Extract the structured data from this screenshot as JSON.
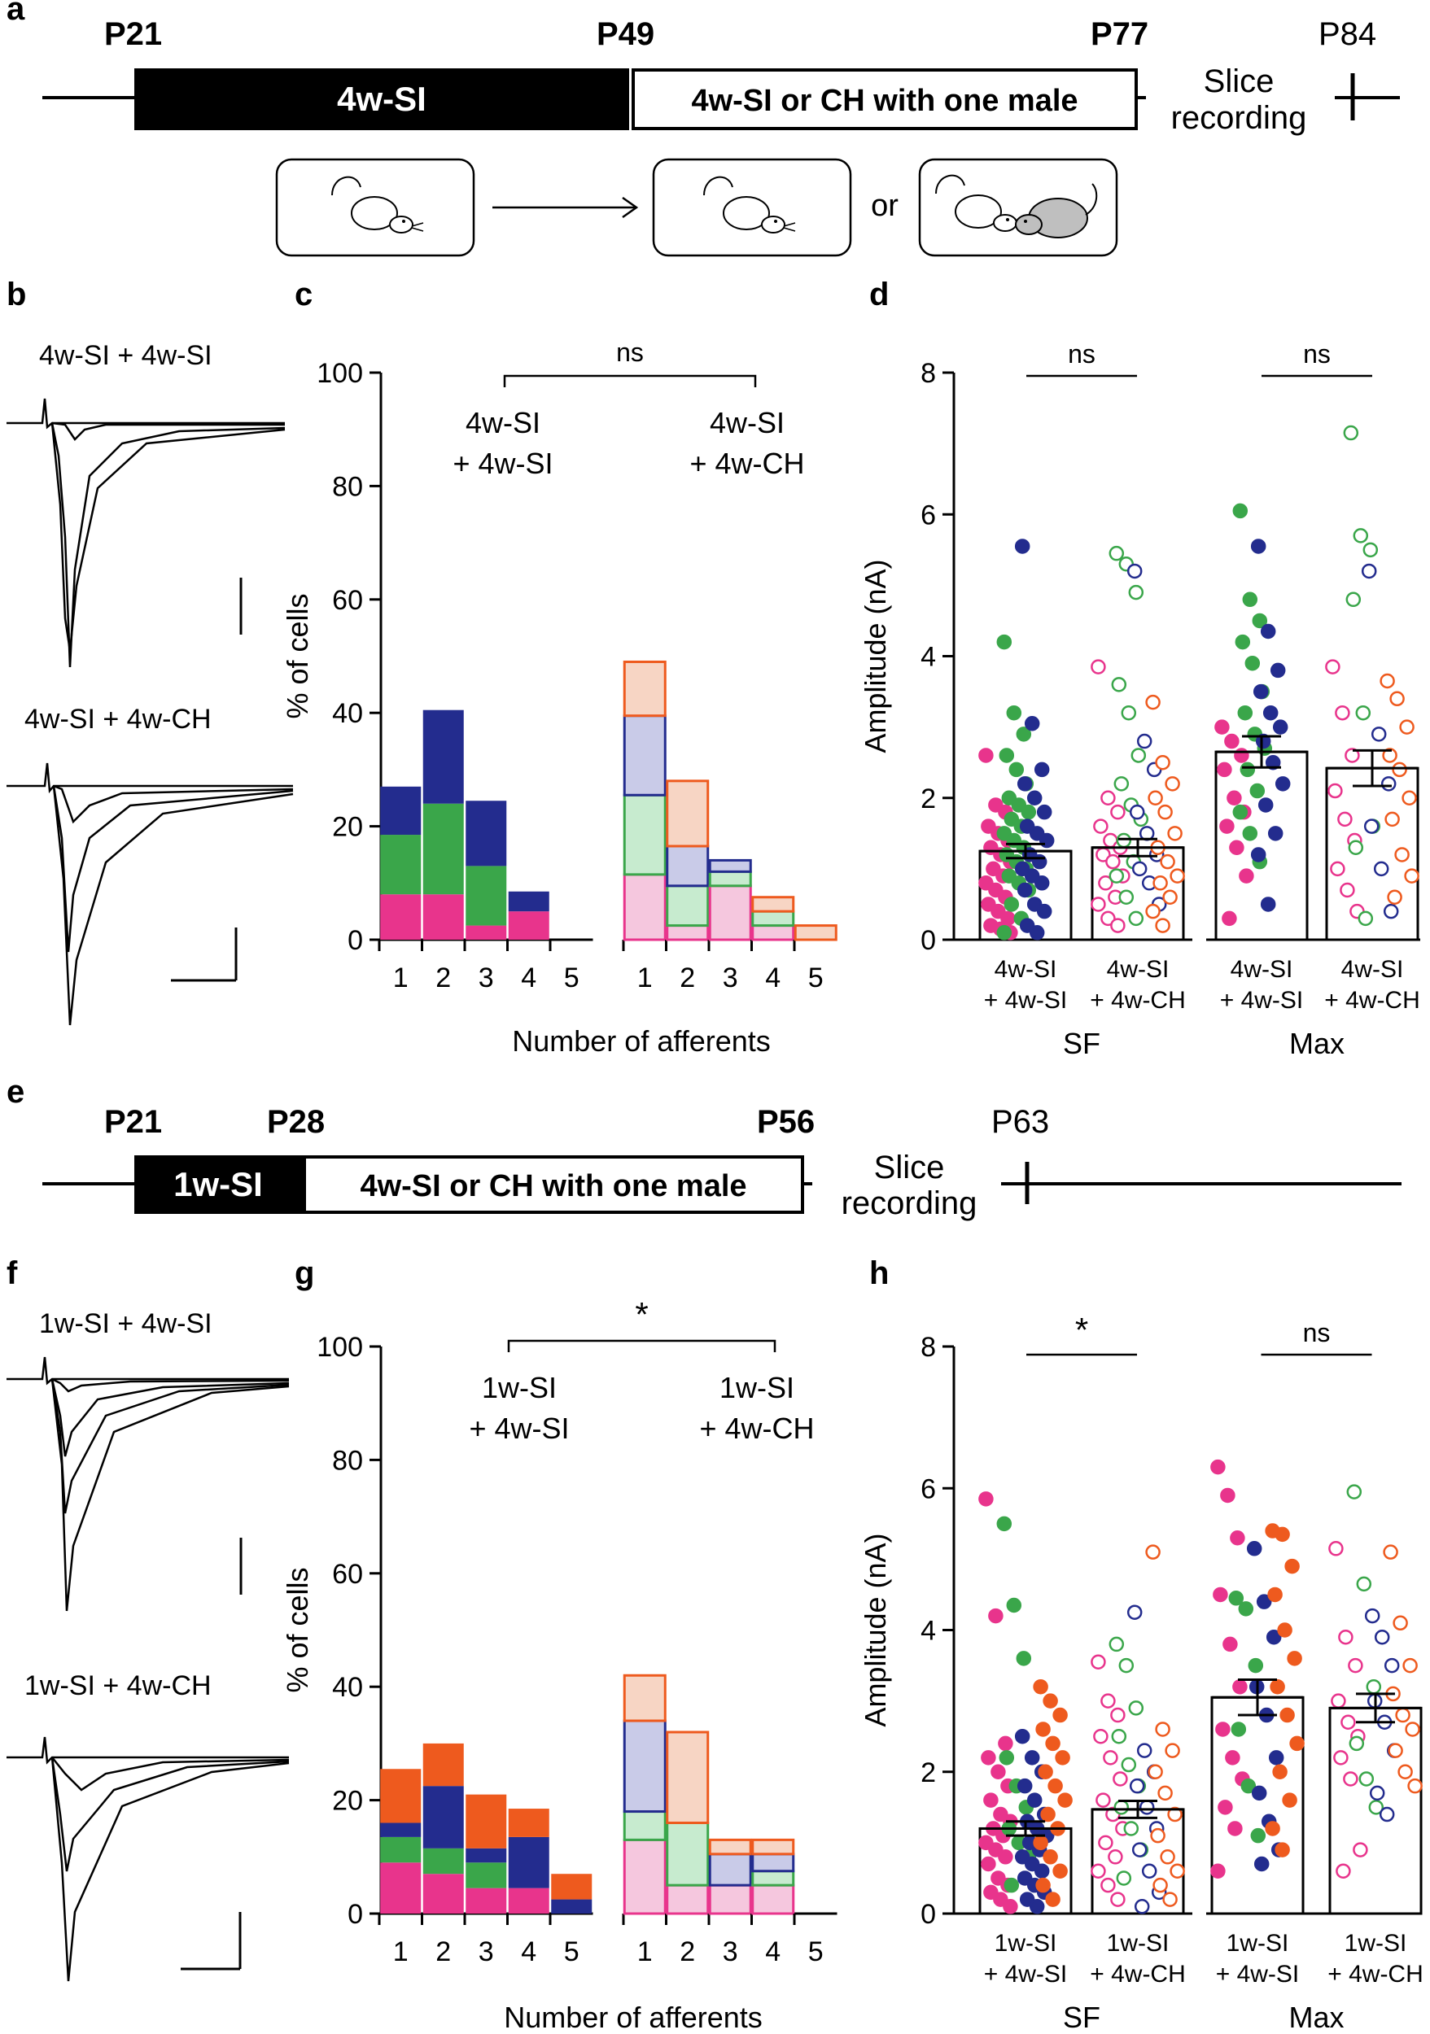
{
  "panels": {
    "a": {
      "letter": "a",
      "timepoints": [
        "P21",
        "P49",
        "P77",
        "P84"
      ],
      "box1": "4w-SI",
      "box2": "4w-SI or CH with one male",
      "slice1": "Slice",
      "slice2": "recording",
      "or": "or"
    },
    "b": {
      "letter": "b",
      "trace_top": "4w-SI + 4w-SI",
      "trace_bottom": "4w-SI + 4w-CH"
    },
    "c": {
      "letter": "c"
    },
    "d": {
      "letter": "d"
    },
    "e": {
      "letter": "e",
      "timepoints": [
        "P21",
        "P28",
        "P56",
        "P63"
      ],
      "box1": "1w-SI",
      "box2": "4w-SI or CH with one male",
      "slice1": "Slice",
      "slice2": "recording"
    },
    "f": {
      "letter": "f",
      "trace_top": "1w-SI + 4w-SI",
      "trace_bottom": "1w-SI + 4w-CH"
    },
    "g": {
      "letter": "g"
    },
    "h": {
      "letter": "h"
    }
  },
  "colors": {
    "magenta": "#e8348c",
    "green": "#3aa64a",
    "navy": "#232c8e",
    "orange": "#ee5a1e",
    "magenta_light": "#f5c7de",
    "green_light": "#c7ebcf",
    "navy_light": "#c9cbe8",
    "orange_light": "#f7d5c4"
  },
  "chart_data": [
    {
      "id": "c",
      "type": "bar",
      "stacked": true,
      "ylabel": "% of cells",
      "xlabel": "Number of afferents",
      "ylim": [
        0,
        100
      ],
      "yticks": [
        "0",
        "20",
        "40",
        "60",
        "80",
        "100"
      ],
      "significance": "ns",
      "groups": [
        {
          "label1": "4w-SI",
          "label2": "+ 4w-SI",
          "categories": [
            "1",
            "2",
            "3",
            "4",
            "5"
          ],
          "filled": true,
          "stacks": [
            [
              {
                "c": "magenta",
                "v": 8
              },
              {
                "c": "green",
                "v": 10.5
              },
              {
                "c": "navy",
                "v": 8.5
              }
            ],
            [
              {
                "c": "magenta",
                "v": 8
              },
              {
                "c": "green",
                "v": 16
              },
              {
                "c": "navy",
                "v": 16.5
              }
            ],
            [
              {
                "c": "magenta",
                "v": 2.5
              },
              {
                "c": "green",
                "v": 10.5
              },
              {
                "c": "navy",
                "v": 11.5
              }
            ],
            [
              {
                "c": "magenta",
                "v": 5
              },
              {
                "c": "navy",
                "v": 3.5
              }
            ],
            []
          ]
        },
        {
          "label1": "4w-SI",
          "label2": "+ 4w-CH",
          "categories": [
            "1",
            "2",
            "3",
            "4",
            "5"
          ],
          "filled": false,
          "stacks": [
            [
              {
                "c": "magenta",
                "v": 11.5
              },
              {
                "c": "green",
                "v": 14
              },
              {
                "c": "navy",
                "v": 14
              },
              {
                "c": "orange",
                "v": 9.5
              }
            ],
            [
              {
                "c": "magenta",
                "v": 2.5
              },
              {
                "c": "green",
                "v": 7
              },
              {
                "c": "navy",
                "v": 7
              },
              {
                "c": "orange",
                "v": 11.5
              }
            ],
            [
              {
                "c": "magenta",
                "v": 9.5
              },
              {
                "c": "green",
                "v": 2.5
              },
              {
                "c": "navy",
                "v": 2
              }
            ],
            [
              {
                "c": "magenta",
                "v": 2.5
              },
              {
                "c": "green",
                "v": 2.5
              },
              {
                "c": "orange",
                "v": 2.5
              }
            ],
            [
              {
                "c": "orange",
                "v": 2.5
              }
            ]
          ]
        }
      ]
    },
    {
      "id": "d",
      "type": "scatter",
      "ylabel": "Amplitude (nA)",
      "ylim": [
        0,
        8
      ],
      "yticks": [
        "0",
        "2",
        "4",
        "6",
        "8"
      ],
      "categories": [
        {
          "l1": "4w-SI",
          "l2": "+ 4w-SI",
          "mean": 1.25,
          "sem": 0.1,
          "filled": true
        },
        {
          "l1": "4w-SI",
          "l2": "+ 4w-CH",
          "mean": 1.3,
          "sem": 0.12,
          "filled": false
        },
        {
          "l1": "4w-SI",
          "l2": "+ 4w-SI",
          "mean": 2.65,
          "sem": 0.22,
          "filled": true
        },
        {
          "l1": "4w-SI",
          "l2": "+ 4w-CH",
          "mean": 2.42,
          "sem": 0.25,
          "filled": false
        }
      ],
      "group_labels": [
        "SF",
        "Max"
      ],
      "significance": [
        "ns",
        "ns"
      ],
      "points": [
        {
          "g": 0,
          "c": "magenta",
          "v": [
            2.6,
            1.9,
            1.8,
            1.6,
            1.5,
            1.4,
            1.3,
            1.2,
            1.1,
            1.0,
            0.9,
            0.8,
            0.7,
            0.6,
            0.5,
            0.4,
            0.3,
            0.2,
            0.15,
            0.1
          ]
        },
        {
          "g": 0,
          "c": "green",
          "v": [
            4.2,
            3.2,
            2.9,
            2.6,
            2.4,
            2.2,
            2.0,
            1.9,
            1.8,
            1.7,
            1.6,
            1.5,
            1.4,
            1.3,
            1.2,
            1.1,
            1.0,
            0.9,
            0.8,
            0.7,
            0.5,
            0.3,
            0.1
          ]
        },
        {
          "g": 0,
          "c": "navy",
          "v": [
            5.55,
            3.05,
            2.4,
            2.2,
            2.0,
            1.8,
            1.6,
            1.5,
            1.4,
            1.2,
            1.1,
            1.0,
            0.9,
            0.8,
            0.7,
            0.5,
            0.4,
            0.2,
            0.1
          ]
        },
        {
          "g": 1,
          "c": "magenta",
          "v": [
            3.85,
            2.0,
            1.8,
            1.6,
            1.4,
            1.3,
            1.2,
            1.1,
            0.9,
            0.8,
            0.6,
            0.5,
            0.3,
            0.2
          ]
        },
        {
          "g": 1,
          "c": "green",
          "v": [
            5.45,
            5.3,
            4.9,
            3.6,
            3.2,
            2.6,
            2.2,
            1.9,
            1.7,
            1.4,
            1.1,
            0.9,
            0.6,
            0.3
          ]
        },
        {
          "g": 1,
          "c": "navy",
          "v": [
            5.2,
            2.8,
            2.4,
            1.8,
            1.5,
            1.2,
            1.0,
            0.8,
            0.5
          ]
        },
        {
          "g": 1,
          "c": "orange",
          "v": [
            3.35,
            2.5,
            2.2,
            2.0,
            1.8,
            1.5,
            1.3,
            1.1,
            0.9,
            0.8,
            0.6,
            0.4,
            0.2
          ]
        },
        {
          "g": 2,
          "c": "magenta",
          "v": [
            3.0,
            2.8,
            2.6,
            2.4,
            2.0,
            1.8,
            1.6,
            1.3,
            0.9,
            0.3
          ]
        },
        {
          "g": 2,
          "c": "green",
          "v": [
            6.05,
            4.8,
            4.5,
            4.2,
            3.9,
            3.5,
            3.2,
            2.9,
            2.7,
            2.4,
            2.1,
            1.8,
            1.5,
            1.1
          ]
        },
        {
          "g": 2,
          "c": "navy",
          "v": [
            5.55,
            4.35,
            3.8,
            3.5,
            3.2,
            3.0,
            2.8,
            2.5,
            2.2,
            1.9,
            1.5,
            1.2,
            0.5
          ]
        },
        {
          "g": 3,
          "c": "magenta",
          "v": [
            3.85,
            3.2,
            2.6,
            2.1,
            1.7,
            1.4,
            1.0,
            0.7,
            0.4
          ]
        },
        {
          "g": 3,
          "c": "green",
          "v": [
            7.15,
            5.7,
            5.5,
            4.8,
            3.2,
            1.6,
            1.3,
            0.3
          ]
        },
        {
          "g": 3,
          "c": "navy",
          "v": [
            5.2,
            2.9,
            2.2,
            1.6,
            1.0,
            0.4
          ]
        },
        {
          "g": 3,
          "c": "orange",
          "v": [
            3.65,
            3.4,
            3.0,
            2.6,
            2.4,
            2.0,
            1.7,
            1.2,
            0.9,
            0.6
          ]
        }
      ]
    },
    {
      "id": "g",
      "type": "bar",
      "stacked": true,
      "ylabel": "% of cells",
      "xlabel": "Number of afferents",
      "ylim": [
        0,
        100
      ],
      "yticks": [
        "0",
        "20",
        "40",
        "60",
        "80",
        "100"
      ],
      "significance": "*",
      "groups": [
        {
          "label1": "1w-SI",
          "label2": "+ 4w-SI",
          "categories": [
            "1",
            "2",
            "3",
            "4",
            "5"
          ],
          "filled": true,
          "stacks": [
            [
              {
                "c": "magenta",
                "v": 9
              },
              {
                "c": "green",
                "v": 4.5
              },
              {
                "c": "navy",
                "v": 2.5
              },
              {
                "c": "orange",
                "v": 9.5
              }
            ],
            [
              {
                "c": "magenta",
                "v": 7
              },
              {
                "c": "green",
                "v": 4.5
              },
              {
                "c": "navy",
                "v": 11
              },
              {
                "c": "orange",
                "v": 7.5
              }
            ],
            [
              {
                "c": "magenta",
                "v": 4.5
              },
              {
                "c": "green",
                "v": 4.5
              },
              {
                "c": "navy",
                "v": 2.5
              },
              {
                "c": "orange",
                "v": 9.5
              }
            ],
            [
              {
                "c": "magenta",
                "v": 4.5
              },
              {
                "c": "navy",
                "v": 9
              },
              {
                "c": "orange",
                "v": 5
              }
            ],
            [
              {
                "c": "navy",
                "v": 2.5
              },
              {
                "c": "orange",
                "v": 4.5
              }
            ]
          ]
        },
        {
          "label1": "1w-SI",
          "label2": "+ 4w-CH",
          "categories": [
            "1",
            "2",
            "3",
            "4",
            "5"
          ],
          "filled": false,
          "stacks": [
            [
              {
                "c": "magenta",
                "v": 13
              },
              {
                "c": "green",
                "v": 5
              },
              {
                "c": "navy",
                "v": 16
              },
              {
                "c": "orange",
                "v": 8
              }
            ],
            [
              {
                "c": "magenta",
                "v": 5
              },
              {
                "c": "green",
                "v": 11
              },
              {
                "c": "orange",
                "v": 16
              }
            ],
            [
              {
                "c": "magenta",
                "v": 5
              },
              {
                "c": "navy",
                "v": 5.5
              },
              {
                "c": "orange",
                "v": 2.5
              }
            ],
            [
              {
                "c": "magenta",
                "v": 5
              },
              {
                "c": "green",
                "v": 2.5
              },
              {
                "c": "navy",
                "v": 3
              },
              {
                "c": "orange",
                "v": 2.5
              }
            ],
            []
          ]
        }
      ]
    },
    {
      "id": "h",
      "type": "scatter",
      "ylabel": "Amplitude (nA)",
      "ylim": [
        0,
        8
      ],
      "yticks": [
        "0",
        "2",
        "4",
        "6",
        "8"
      ],
      "categories": [
        {
          "l1": "1w-SI",
          "l2": "+ 4w-SI",
          "mean": 1.2,
          "sem": 0.1,
          "filled": true
        },
        {
          "l1": "1w-SI",
          "l2": "+ 4w-CH",
          "mean": 1.47,
          "sem": 0.12,
          "filled": false
        },
        {
          "l1": "1w-SI",
          "l2": "+ 4w-SI",
          "mean": 3.05,
          "sem": 0.25,
          "filled": true
        },
        {
          "l1": "1w-SI",
          "l2": "+ 4w-CH",
          "mean": 2.9,
          "sem": 0.2,
          "filled": false
        }
      ],
      "group_labels": [
        "SF",
        "Max"
      ],
      "significance": [
        "*",
        "ns"
      ],
      "points": [
        {
          "g": 0,
          "c": "magenta",
          "v": [
            5.85,
            4.2,
            2.4,
            2.2,
            2.0,
            1.8,
            1.6,
            1.4,
            1.3,
            1.2,
            1.1,
            1.0,
            0.9,
            0.8,
            0.7,
            0.5,
            0.4,
            0.3,
            0.2,
            0.1
          ]
        },
        {
          "g": 0,
          "c": "green",
          "v": [
            5.5,
            4.35,
            3.6,
            2.2,
            1.8,
            1.5,
            1.2,
            1.0,
            0.8,
            0.4
          ]
        },
        {
          "g": 0,
          "c": "navy",
          "v": [
            2.5,
            2.2,
            2.0,
            1.8,
            1.6,
            1.4,
            1.3,
            1.2,
            1.1,
            1.0,
            0.9,
            0.8,
            0.7,
            0.6,
            0.5,
            0.4,
            0.3,
            0.2,
            0.1
          ]
        },
        {
          "g": 0,
          "c": "orange",
          "v": [
            3.2,
            3.0,
            2.8,
            2.6,
            2.4,
            2.2,
            2.0,
            1.8,
            1.6,
            1.4,
            1.2,
            1.0,
            0.8,
            0.6,
            0.4,
            0.2
          ]
        },
        {
          "g": 1,
          "c": "magenta",
          "v": [
            3.55,
            3.0,
            2.8,
            2.5,
            2.2,
            1.9,
            1.6,
            1.4,
            1.2,
            1.0,
            0.8,
            0.6,
            0.4,
            0.2
          ]
        },
        {
          "g": 1,
          "c": "green",
          "v": [
            3.8,
            3.5,
            2.9,
            2.5,
            2.1,
            1.8,
            1.5,
            1.2,
            0.9,
            0.5
          ]
        },
        {
          "g": 1,
          "c": "navy",
          "v": [
            4.25,
            2.3,
            2.0,
            1.8,
            1.5,
            1.2,
            0.9,
            0.6,
            0.3,
            0.1
          ]
        },
        {
          "g": 1,
          "c": "orange",
          "v": [
            5.1,
            2.6,
            2.3,
            2.0,
            1.7,
            1.4,
            1.1,
            0.8,
            0.6,
            0.4,
            0.2
          ]
        },
        {
          "g": 2,
          "c": "magenta",
          "v": [
            6.3,
            5.9,
            5.3,
            4.5,
            3.8,
            3.2,
            2.6,
            2.2,
            1.9,
            1.5,
            1.2,
            0.6
          ]
        },
        {
          "g": 2,
          "c": "green",
          "v": [
            4.45,
            4.3,
            3.5,
            2.6,
            1.8,
            1.1
          ]
        },
        {
          "g": 2,
          "c": "navy",
          "v": [
            5.15,
            4.4,
            3.9,
            3.2,
            2.8,
            2.2,
            1.7,
            1.3,
            0.9,
            0.7
          ]
        },
        {
          "g": 2,
          "c": "orange",
          "v": [
            5.4,
            5.35,
            4.9,
            4.5,
            4.0,
            3.6,
            3.2,
            2.8,
            2.4,
            2.0,
            1.6,
            1.2,
            0.9
          ]
        },
        {
          "g": 3,
          "c": "magenta",
          "v": [
            5.15,
            3.9,
            3.5,
            3.0,
            2.7,
            2.5,
            2.2,
            1.9,
            0.9,
            0.6
          ]
        },
        {
          "g": 3,
          "c": "green",
          "v": [
            5.95,
            4.65,
            3.2,
            2.4,
            1.9,
            1.5
          ]
        },
        {
          "g": 3,
          "c": "navy",
          "v": [
            4.2,
            3.9,
            3.5,
            3.0,
            2.7,
            2.3,
            1.7,
            1.4
          ]
        },
        {
          "g": 3,
          "c": "orange",
          "v": [
            5.1,
            4.1,
            3.5,
            3.1,
            2.8,
            2.6,
            2.3,
            2.0,
            1.8
          ]
        }
      ]
    }
  ]
}
